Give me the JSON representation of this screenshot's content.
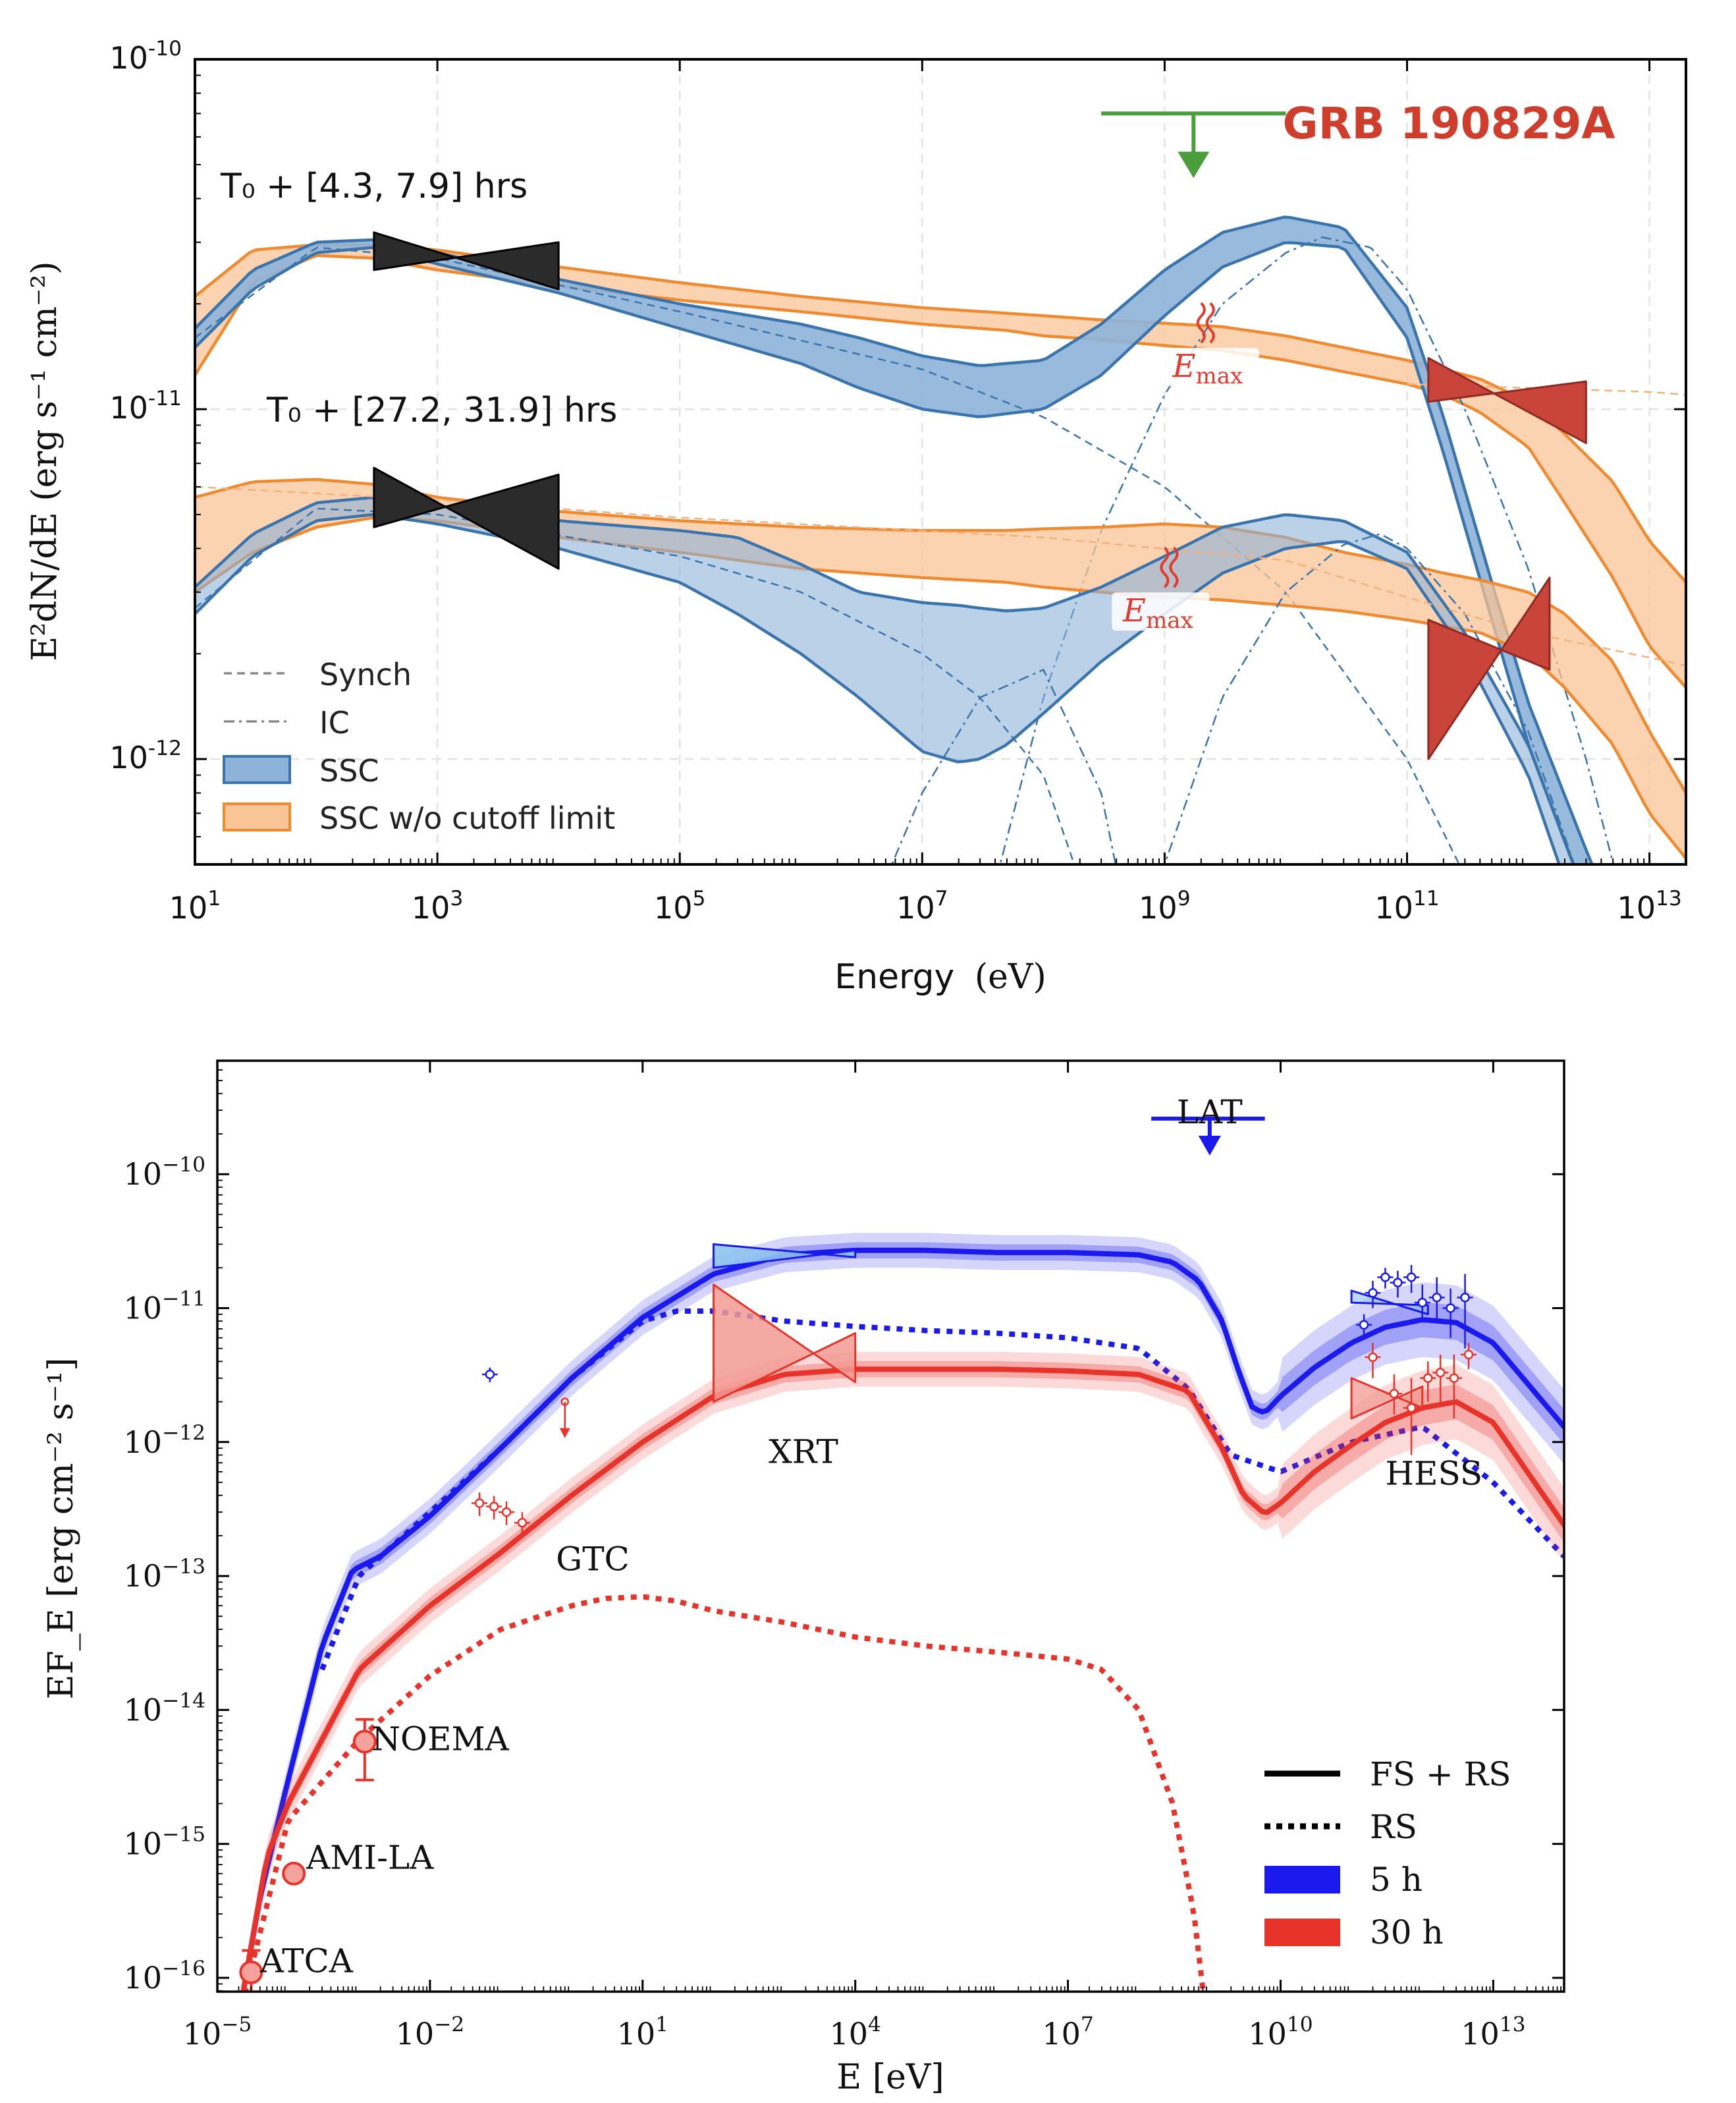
{
  "chart_data": [
    {
      "type": "area",
      "title": "GRB 190829A",
      "xlabel": "Energy",
      "xlabel_unit": "(eV)",
      "ylabel": "E²dN/dE (erg s⁻¹ cm⁻²)",
      "xscale": "log",
      "yscale": "log",
      "xlim": [
        10,
        20000000000000.0
      ],
      "ylim": [
        5e-13,
        1e-10
      ],
      "grid": true,
      "legend_placement": "lower-left",
      "x_ticks": [
        {
          "value": 10,
          "base": "10",
          "exp": "1"
        },
        {
          "value": 1000,
          "base": "10",
          "exp": "3"
        },
        {
          "value": 100000,
          "base": "10",
          "exp": "5"
        },
        {
          "value": 10000000,
          "base": "10",
          "exp": "7"
        },
        {
          "value": 1000000000,
          "base": "10",
          "exp": "9"
        },
        {
          "value": 100000000000,
          "base": "10",
          "exp": "11"
        },
        {
          "value": 10000000000000,
          "base": "10",
          "exp": "13"
        }
      ],
      "y_ticks": [
        {
          "value": 1e-10,
          "base": "10",
          "exp": "-10"
        },
        {
          "value": 1e-11,
          "base": "10",
          "exp": "-11"
        },
        {
          "value": 1e-12,
          "base": "10",
          "exp": "-12"
        }
      ],
      "epochs": [
        {
          "label": "T₀ + [4.3, 7.9] hrs",
          "E_max_label": "E_max",
          "E_max_energy": 2000000000.0
        },
        {
          "label": "T₀ + [27.2, 31.9] hrs",
          "E_max_label": "E_max",
          "E_max_energy": 1000000000.0
        }
      ],
      "legend": [
        {
          "label": "Synch",
          "style": "dashed"
        },
        {
          "label": "IC",
          "style": "dashdot"
        },
        {
          "label": "SSC",
          "style": "band",
          "color": "#3a74ad"
        },
        {
          "label": "SSC w/o cutoff limit",
          "style": "band",
          "color": "#f08a30"
        }
      ],
      "upper_limit": {
        "x_range": [
          300000000.0,
          10000000000.0
        ],
        "y": 7e-11,
        "color": "#4b9e3c"
      },
      "xray_butterflies": [
        {
          "epoch": 1,
          "x_range": [
            300,
            10000
          ],
          "y_left": [
            2.5e-11,
            3.2e-11
          ],
          "y_right": [
            2.2e-11,
            3e-11
          ]
        },
        {
          "epoch": 2,
          "x_range": [
            300,
            10000
          ],
          "y_left": [
            4.6e-12,
            6.8e-12
          ],
          "y_right": [
            3.5e-12,
            6.5e-12
          ]
        }
      ],
      "vhe_butterflies": [
        {
          "epoch": 1,
          "x_range": [
            150000000000.0,
            3000000000000.0
          ],
          "y_left": [
            1.05e-11,
            1.4e-11
          ],
          "y_right": [
            8e-12,
            1.2e-11
          ]
        },
        {
          "epoch": 2,
          "x_range": [
            150000000000.0,
            1500000000000.0
          ],
          "y_left": [
            1e-12,
            2.5e-12
          ],
          "y_right": [
            1.8e-12,
            3.3e-12
          ]
        }
      ],
      "colors": {
        "ssc": "#3a74ad",
        "ssc_fill": "#8db3d9",
        "orange": "#f08a30",
        "orange_fill": "#f9c496",
        "hess": "#c9453b",
        "xrt": "#333333",
        "title": "#cf3e2c"
      }
    },
    {
      "type": "line",
      "xlabel": "E [eV]",
      "ylabel": "EF_E [erg cm⁻² s⁻¹]",
      "xscale": "log",
      "yscale": "log",
      "xlim": [
        1e-05,
        100000000000000.0
      ],
      "ylim": [
        4e-17,
        4e-10
      ],
      "grid": false,
      "legend_placement": "lower-right",
      "x_ticks": [
        {
          "value": 1e-05,
          "base": "10",
          "exp": "−5"
        },
        {
          "value": 0.01,
          "base": "10",
          "exp": "−2"
        },
        {
          "value": 10,
          "base": "10",
          "exp": "1"
        },
        {
          "value": 10000.0,
          "base": "10",
          "exp": "4"
        },
        {
          "value": 10000000.0,
          "base": "10",
          "exp": "7"
        },
        {
          "value": 10000000000.0,
          "base": "10",
          "exp": "10"
        },
        {
          "value": 10000000000000.0,
          "base": "10",
          "exp": "13"
        }
      ],
      "y_ticks": [
        {
          "value": 1e-10,
          "base": "10",
          "exp": "−10"
        },
        {
          "value": 1e-11,
          "base": "10",
          "exp": "−11"
        },
        {
          "value": 1e-12,
          "base": "10",
          "exp": "−12"
        },
        {
          "value": 1e-13,
          "base": "10",
          "exp": "−13"
        },
        {
          "value": 1e-14,
          "base": "10",
          "exp": "−14"
        },
        {
          "value": 1e-15,
          "base": "10",
          "exp": "−15"
        },
        {
          "value": 1e-16,
          "base": "10",
          "exp": "−16"
        }
      ],
      "legend": [
        {
          "label": "FS + RS",
          "style": "solid",
          "color": "#000000"
        },
        {
          "label": "RS",
          "style": "dotted",
          "color": "#000000"
        },
        {
          "label": "5 h",
          "style": "band",
          "color": "#1a1aee"
        },
        {
          "label": "30 h",
          "style": "band",
          "color": "#e8332a"
        }
      ],
      "instrument_labels": [
        {
          "text": "LAT",
          "x": 1000000000.0,
          "y": 2.4e-10
        },
        {
          "text": "XRT",
          "x": 600,
          "y": 7e-13
        },
        {
          "text": "GTC",
          "x": 0.6,
          "y": 1.1e-13
        },
        {
          "text": "HESS",
          "x": 300000000000.0,
          "y": 4.8e-13
        },
        {
          "text": "NOEMA",
          "x": 0.0015,
          "y": 5e-15
        },
        {
          "text": "AMI-LA",
          "x": 0.00018,
          "y": 6.5e-16
        },
        {
          "text": "ATCA",
          "x": 4e-05,
          "y": 1.1e-16
        }
      ],
      "series": [
        {
          "name": "5 h",
          "component": "FS + RS",
          "style": "solid",
          "color": "#1a1aee",
          "x": [
            2e-05,
            4e-05,
            0.0001,
            0.0003,
            0.0008,
            0.002,
            0.01,
            0.1,
            1,
            10,
            100,
            1000,
            10000,
            100000,
            1000000.0,
            10000000.0,
            100000000.0,
            300000000.0,
            700000000.0,
            1500000000.0,
            2500000000.0,
            4000000000.0,
            6000000000.0,
            10000000000.0,
            30000000000.0,
            100000000000.0,
            300000000000.0,
            1000000000000.0,
            3000000000000.0,
            10000000000000.0,
            100000000000000.0
          ],
          "y": [
            5e-17,
            4e-16,
            3e-15,
            3e-14,
            1.1e-13,
            1.4e-13,
            2.8e-13,
            9e-13,
            3e-12,
            8.5e-12,
            1.8e-11,
            2.5e-11,
            2.7e-11,
            2.7e-11,
            2.6e-11,
            2.6e-11,
            2.5e-11,
            2.2e-11,
            1.6e-11,
            8e-12,
            3.5e-12,
            1.8e-12,
            1.65e-12,
            2.2e-12,
            3.6e-12,
            5.5e-12,
            7.2e-12,
            8.2e-12,
            7.8e-12,
            5.5e-12,
            1.3e-12
          ]
        },
        {
          "name": "5 h",
          "component": "RS",
          "style": "dotted",
          "color": "#1a1aee",
          "x": [
            0.0003,
            0.001,
            0.01,
            0.1,
            1,
            10,
            30,
            100,
            1000,
            10000,
            100000,
            1000000.0,
            10000000.0,
            100000000.0,
            500000000.0,
            2000000000.0,
            10000000000.0,
            100000000000.0,
            1000000000000.0,
            10000000000000.0,
            100000000000000.0
          ],
          "y": [
            2e-14,
            1e-13,
            3e-13,
            9e-13,
            3e-12,
            8e-12,
            9.5e-12,
            9.5e-12,
            8e-12,
            7.3e-12,
            6.8e-12,
            6.5e-12,
            6e-12,
            5e-12,
            2.5e-12,
            8e-13,
            6e-13,
            1e-12,
            1.3e-12,
            5e-13,
            1.4e-13
          ]
        },
        {
          "name": "30 h",
          "component": "FS + RS",
          "style": "solid",
          "color": "#e8332a",
          "x": [
            2e-05,
            5e-05,
            0.0001,
            0.0003,
            0.001,
            0.01,
            0.1,
            1,
            10,
            100,
            1000,
            10000,
            100000,
            1000000.0,
            10000000.0,
            100000000.0,
            500000000.0,
            1500000000.0,
            3000000000.0,
            6000000000.0,
            10000000000.0,
            30000000000.0,
            100000000000.0,
            300000000000.0,
            1000000000000.0,
            3000000000000.0,
            10000000000000.0,
            100000000000000.0
          ],
          "y": [
            5e-17,
            8e-16,
            2e-15,
            6e-15,
            2e-14,
            6e-14,
            1.5e-13,
            4e-13,
            1e-12,
            2.2e-12,
            3.2e-12,
            3.5e-12,
            3.5e-12,
            3.5e-12,
            3.4e-12,
            3.2e-12,
            2.4e-12,
            9e-13,
            4e-13,
            2.9e-13,
            3.5e-13,
            6e-13,
            9.5e-13,
            1.4e-12,
            1.8e-12,
            2e-12,
            1.4e-12,
            2.4e-13
          ]
        },
        {
          "name": "30 h",
          "component": "RS",
          "style": "dotted",
          "color": "#e8332a",
          "x": [
            2e-05,
            0.0001,
            0.001,
            0.01,
            0.1,
            1,
            3,
            10,
            30,
            100,
            1000,
            10000,
            100000,
            1000000.0,
            10000000.0,
            30000000.0,
            100000000.0,
            300000000.0,
            600000000.0,
            1000000000.0
          ],
          "y": [
            5e-17,
            1.5e-15,
            6e-15,
            1.8e-14,
            4e-14,
            6e-14,
            6.8e-14,
            7e-14,
            6.5e-14,
            5.5e-14,
            4.5e-14,
            3.5e-14,
            3e-14,
            2.7e-14,
            2.4e-14,
            2e-14,
            1e-14,
            2e-15,
            3e-16,
            3e-17
          ]
        }
      ],
      "points": [
        {
          "label": "ATCA",
          "x": 3e-05,
          "y": 1.1e-16,
          "yerr": [
            7e-17,
            1.6e-16
          ],
          "color": "#e8332a"
        },
        {
          "label": "AMI-LA",
          "x": 0.00012,
          "y": 6e-16,
          "color": "#e8332a"
        },
        {
          "label": "NOEMA",
          "x": 0.0012,
          "y": 5.8e-15,
          "yerr": [
            3e-15,
            8.5e-15
          ],
          "color": "#e8332a"
        }
      ],
      "colors": {
        "blue": "#1a1aee",
        "red": "#e8332a"
      }
    }
  ]
}
